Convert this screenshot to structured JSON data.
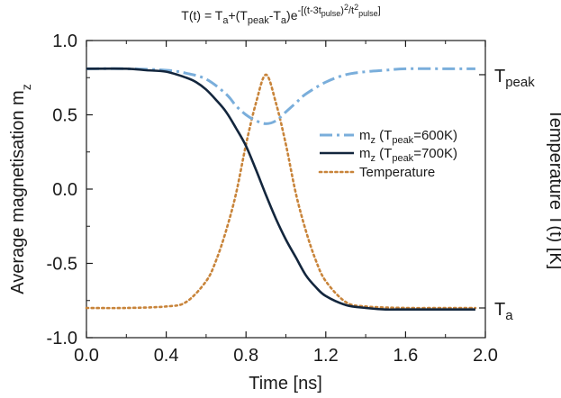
{
  "chart_data": {
    "type": "line",
    "title": "T(t) = Ta+(Tpeak-Ta)e-[(t-3tpulse)2/t2pulse]",
    "xlabel": "Time [ns]",
    "ylabel": "Average magnetisation mz",
    "y2label": "Temperature T(t) [K]",
    "xlim": [
      0.0,
      2.0
    ],
    "ylim": [
      -1.0,
      1.0
    ],
    "x_ticks": [
      "0.0",
      "0.4",
      "0.8",
      "1.2",
      "1.6",
      "2.0"
    ],
    "y_ticks": [
      "1.0",
      "0.5",
      "0.0",
      "-0.5",
      "-1.0"
    ],
    "y2_ticks": [
      "Tpeak",
      "Ta"
    ],
    "grid": false,
    "legend_position": "right",
    "series": [
      {
        "name": "mz (Tpeak=600K)",
        "color": "#7aaedb",
        "style": "dashdot",
        "x": [
          0.0,
          0.2,
          0.4,
          0.5,
          0.6,
          0.7,
          0.75,
          0.8,
          0.85,
          0.9,
          0.95,
          1.0,
          1.05,
          1.1,
          1.2,
          1.3,
          1.4,
          1.5,
          1.6,
          1.8,
          1.95
        ],
        "y": [
          0.81,
          0.81,
          0.8,
          0.78,
          0.74,
          0.64,
          0.56,
          0.5,
          0.46,
          0.44,
          0.46,
          0.52,
          0.58,
          0.64,
          0.72,
          0.77,
          0.79,
          0.8,
          0.81,
          0.81,
          0.81
        ]
      },
      {
        "name": "mz (Tpeak=700K)",
        "color": "#13263d",
        "style": "solid",
        "x": [
          0.0,
          0.2,
          0.3,
          0.4,
          0.5,
          0.55,
          0.6,
          0.65,
          0.7,
          0.75,
          0.8,
          0.85,
          0.9,
          0.95,
          1.0,
          1.05,
          1.1,
          1.15,
          1.2,
          1.3,
          1.4,
          1.5,
          1.6,
          1.8,
          1.95
        ],
        "y": [
          0.81,
          0.81,
          0.8,
          0.79,
          0.75,
          0.72,
          0.67,
          0.6,
          0.52,
          0.41,
          0.29,
          0.13,
          -0.04,
          -0.2,
          -0.34,
          -0.46,
          -0.58,
          -0.66,
          -0.72,
          -0.78,
          -0.8,
          -0.81,
          -0.81,
          -0.81,
          -0.81
        ]
      },
      {
        "name": "Temperature",
        "color": "#c8843a",
        "style": "dotted",
        "axis": "right",
        "note": "Gaussian pulse centred at 0.9 ns, plotted on left-axis scale between Ta (-0.8) and Tpeak (0.77)",
        "x": [
          0.0,
          0.2,
          0.4,
          0.5,
          0.6,
          0.65,
          0.7,
          0.75,
          0.8,
          0.85,
          0.9,
          0.95,
          1.0,
          1.05,
          1.1,
          1.15,
          1.2,
          1.3,
          1.4,
          1.6,
          1.8,
          1.95
        ],
        "y": [
          -0.8,
          -0.8,
          -0.79,
          -0.76,
          -0.62,
          -0.48,
          -0.28,
          -0.03,
          0.3,
          0.58,
          0.77,
          0.58,
          0.3,
          -0.03,
          -0.28,
          -0.48,
          -0.62,
          -0.76,
          -0.79,
          -0.8,
          -0.8,
          -0.8
        ]
      }
    ]
  }
}
